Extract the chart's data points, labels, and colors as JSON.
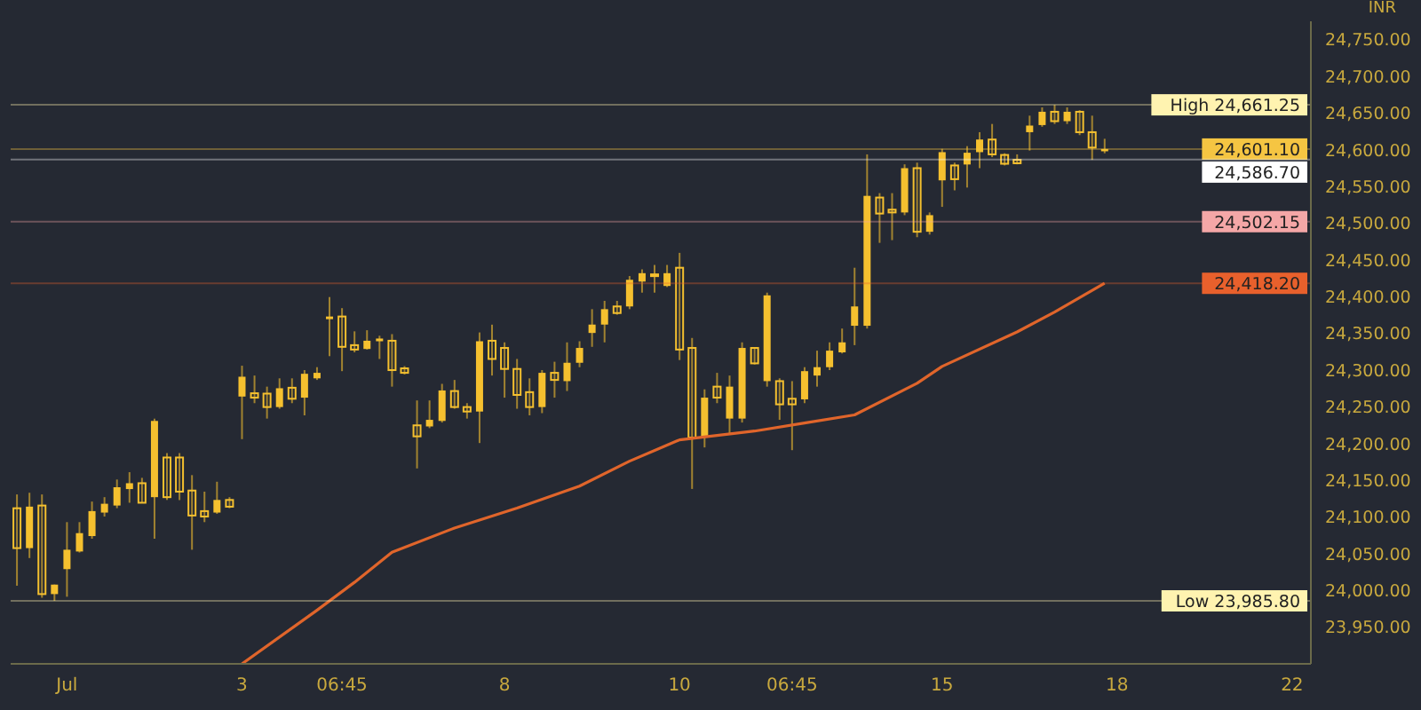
{
  "chart_data": {
    "type": "candlestick",
    "ylabel": "INR",
    "categories": [
      null,
      null,
      null,
      null,
      "Jul",
      null,
      null,
      null,
      null,
      null,
      null,
      null,
      null,
      null,
      null,
      null,
      null,
      null,
      "3",
      null,
      null,
      null,
      null,
      null,
      null,
      null,
      "06:45",
      null,
      null,
      null,
      null,
      null,
      null,
      null,
      null,
      null,
      null,
      null,
      null,
      "8",
      null,
      null,
      null,
      null,
      null,
      null,
      null,
      null,
      null,
      null,
      null,
      null,
      null,
      "10",
      null,
      null,
      null,
      null,
      null,
      null,
      null,
      null,
      "06:45",
      null,
      null,
      null,
      null,
      null,
      null,
      null,
      null,
      null,
      null,
      null,
      "15",
      null,
      null,
      null,
      null,
      null,
      null,
      null,
      null,
      null,
      null,
      null,
      null,
      null,
      "18",
      null,
      null,
      null,
      null,
      null,
      null,
      null,
      null,
      null,
      null,
      null,
      null,
      null,
      "22",
      null
    ],
    "series": [
      {
        "color": "#f5c02f",
        "ohlc": [
          [
            24111.9,
            24130.7,
            24006.4,
            24057.6
          ],
          [
            24057.6,
            24133,
            24044.1,
            24114.1
          ],
          [
            24115.6,
            24130.7,
            23990,
            23995
          ],
          [
            23995,
            24008,
            23985.8,
            24007.9
          ],
          [
            24029,
            24093,
            23991.4,
            24055.4
          ],
          [
            24053,
            24093,
            24051.6,
            24078
          ],
          [
            24074,
            24121,
            24070.4,
            24108
          ],
          [
            24106,
            24127,
            24100.6,
            24118
          ],
          [
            24115.6,
            24151,
            24112,
            24140.5
          ],
          [
            24138,
            24161,
            24119.4,
            24146
          ],
          [
            24146,
            24153.3,
            24119.4,
            24119.4
          ],
          [
            24127,
            24233.9,
            24070.4,
            24230.8
          ],
          [
            24181,
            24187,
            24123.2,
            24127
          ],
          [
            24181,
            24187,
            24123,
            24134.5
          ],
          [
            24136,
            24157,
            24055.4,
            24102
          ],
          [
            24108,
            24134.5,
            24093,
            24100.6
          ],
          [
            24106,
            24148,
            24104.3,
            24123.2
          ],
          [
            24123.2,
            24127,
            24112,
            24114
          ],
          [
            24264,
            24306,
            24206,
            24291
          ],
          [
            24268.5,
            24292.6,
            24255,
            24262.5
          ],
          [
            24268,
            24277.5,
            24234,
            24249.7
          ],
          [
            24249.7,
            24288.8,
            24247.4,
            24275.3
          ],
          [
            24276,
            24288.8,
            24255,
            24261
          ],
          [
            24262.5,
            24300,
            24238.4,
            24295
          ],
          [
            24288.8,
            24304,
            24286.6,
            24296.3
          ],
          [
            24369.4,
            24399.5,
            24319,
            24373
          ],
          [
            24373,
            24384.4,
            24298.6,
            24331.7
          ],
          [
            24334,
            24352.8,
            24324.2,
            24328
          ],
          [
            24328.8,
            24354.3,
            24328,
            24340
          ],
          [
            24339.3,
            24346.8,
            24315.2,
            24343
          ],
          [
            24340,
            24349,
            24277.5,
            24300
          ],
          [
            24302.4,
            24305.4,
            24294.1,
            24296.3
          ],
          [
            24224.8,
            24258.7,
            24166.1,
            24209.8
          ],
          [
            24223.3,
            24258.7,
            24221,
            24232.3
          ],
          [
            24230.8,
            24281.3,
            24228.6,
            24272.3
          ],
          [
            24271.5,
            24286.6,
            24247.4,
            24249.7
          ],
          [
            24249.7,
            24255,
            24234,
            24243.6
          ],
          [
            24243.6,
            24351.3,
            24200.7,
            24339.3
          ],
          [
            24340,
            24361.9,
            24292.6,
            24315.2
          ],
          [
            24330.2,
            24337.8,
            24262.5,
            24301.6
          ],
          [
            24301.6,
            24315.2,
            24247.4,
            24266.2
          ],
          [
            24270,
            24288.8,
            24238.4,
            24249.7
          ],
          [
            24249.7,
            24300,
            24241.4,
            24296.3
          ],
          [
            24296.3,
            24311.4,
            24262.5,
            24286.6
          ],
          [
            24285,
            24337.8,
            24271.5,
            24310
          ],
          [
            24310,
            24339.3,
            24304,
            24330.2
          ],
          [
            24350.6,
            24383,
            24331.7,
            24362
          ],
          [
            24362,
            24394.3,
            24337.8,
            24383
          ],
          [
            24386.7,
            24394.3,
            24375.4,
            24377.7
          ],
          [
            24386.7,
            24428.1,
            24383,
            24423
          ],
          [
            24420.6,
            24437.2,
            24405.5,
            24432
          ],
          [
            24430.4,
            24443.2,
            24405.5,
            24428.9
          ],
          [
            24414.6,
            24443.2,
            24413.1,
            24432
          ],
          [
            24439.4,
            24459.7,
            24313.7,
            24328
          ],
          [
            24330.2,
            24343.8,
            24138.2,
            24208.2
          ],
          [
            24208.2,
            24273.8,
            24194.7,
            24262.5
          ],
          [
            24277.5,
            24296.3,
            24255,
            24262.5
          ],
          [
            24234,
            24292.6,
            24213.5,
            24277.5
          ],
          [
            24234,
            24337.8,
            24228.6,
            24330.2
          ],
          [
            24330.2,
            24330.2,
            24307.6,
            24309.2
          ],
          [
            24285,
            24405.5,
            24277.5,
            24401.8
          ],
          [
            24285,
            24288.8,
            24232.3,
            24253.4
          ],
          [
            24261,
            24285,
            24191,
            24253.4
          ],
          [
            24260.2,
            24304,
            24255,
            24298.6
          ],
          [
            24292.6,
            24326.5,
            24277.5,
            24304
          ],
          [
            24304,
            24337.8,
            24300,
            24326.5
          ],
          [
            24324.2,
            24356.6,
            24322.7,
            24337.8
          ],
          [
            24360.4,
            24439.4,
            24334,
            24386.7
          ],
          [
            24360.4,
            24593.8,
            24356.6,
            24537.3
          ],
          [
            24535,
            24541,
            24473.3,
            24513.2
          ],
          [
            24518.5,
            24541,
            24477,
            24514.7
          ],
          [
            24514.7,
            24580.2,
            24511,
            24575
          ],
          [
            24575,
            24582.5,
            24481,
            24488.4
          ],
          [
            24488.4,
            24514.7,
            24484.6,
            24511
          ],
          [
            24558.4,
            24601.3,
            24522.3,
            24596.8
          ],
          [
            24578.7,
            24582.5,
            24544.8,
            24560
          ],
          [
            24580,
            24605,
            24548.6,
            24596
          ],
          [
            24596.8,
            24624,
            24575,
            24614
          ],
          [
            24614,
            24635.2,
            24590,
            24593.8
          ],
          [
            24593,
            24595.3,
            24578.7,
            24581
          ],
          [
            24586.3,
            24593.8,
            24580.2,
            24581.7
          ],
          [
            24624,
            24646.5,
            24599,
            24633
          ],
          [
            24633.7,
            24657.8,
            24631.4,
            24651.8
          ],
          [
            24651.8,
            24661.25,
            24635.2,
            24639
          ],
          [
            24639,
            24657.8,
            24635.2,
            24651.8
          ],
          [
            24651.8,
            24654,
            24620,
            24624
          ],
          [
            24624,
            24646.5,
            24586.3,
            24603
          ],
          [
            24598,
            24615,
            24595.3,
            24601.1
          ],
          null,
          null,
          null,
          null,
          null,
          null,
          null,
          null,
          null,
          null,
          null,
          null,
          null,
          null,
          null,
          null
        ]
      },
      {
        "type": "line",
        "color": "#e0652b",
        "values": [
          null,
          null,
          null,
          null,
          null,
          null,
          null,
          null,
          null,
          null,
          null,
          null,
          null,
          null,
          null,
          null,
          null,
          null,
          23900,
          null,
          null,
          null,
          null,
          null,
          23973,
          null,
          null,
          24011,
          null,
          null,
          24052,
          null,
          null,
          null,
          null,
          24085,
          null,
          null,
          null,
          null,
          24112,
          null,
          null,
          null,
          null,
          24142,
          null,
          null,
          null,
          24176,
          null,
          null,
          null,
          24205,
          null,
          null,
          null,
          null,
          null,
          24217,
          null,
          null,
          null,
          24228,
          null,
          null,
          null,
          24239,
          null,
          null,
          null,
          null,
          24282,
          null,
          24305,
          null,
          null,
          null,
          null,
          null,
          24352,
          null,
          null,
          24379,
          null,
          null,
          null,
          24418.2,
          null,
          null,
          null,
          null,
          null,
          null,
          null,
          null,
          null,
          null,
          null,
          null,
          null,
          null,
          null,
          null
        ]
      }
    ],
    "ylim": [
      23900,
      24775
    ],
    "yticks": [
      {
        "value": 23950,
        "label": "23,950.00"
      },
      {
        "value": 24000,
        "label": "24,000.00"
      },
      {
        "value": 24050,
        "label": "24,050.00"
      },
      {
        "value": 24100,
        "label": "24,100.00"
      },
      {
        "value": 24150,
        "label": "24,150.00"
      },
      {
        "value": 24200,
        "label": "24,200.00"
      },
      {
        "value": 24250,
        "label": "24,250.00"
      },
      {
        "value": 24300,
        "label": "24,300.00"
      },
      {
        "value": 24350,
        "label": "24,350.00"
      },
      {
        "value": 24400,
        "label": "24,400.00"
      },
      {
        "value": 24450,
        "label": "24,450.00"
      },
      {
        "value": 24500,
        "label": "24,500.00"
      },
      {
        "value": 24550,
        "label": "24,550.00"
      },
      {
        "value": 24600,
        "label": "24,600.00"
      },
      {
        "value": 24650,
        "label": "24,650.00"
      },
      {
        "value": 24700,
        "label": "24,700.00"
      },
      {
        "value": 24750,
        "label": "24,750.00"
      }
    ],
    "ref_lines": [
      {
        "axis": "y",
        "value": 24661.25,
        "label": "High 24,661.25",
        "color": "#fff3b0"
      },
      {
        "axis": "y",
        "value": 24601.1,
        "label": "24,601.10",
        "color": "#f5c542"
      },
      {
        "axis": "y",
        "value": 24586.7,
        "label": "24,586.70",
        "color": "#ffffff"
      },
      {
        "axis": "y",
        "value": 24502.15,
        "label": "24,502.15",
        "color": "#f4a7a7"
      },
      {
        "axis": "y",
        "value": 24418.2,
        "label": "24,418.20",
        "color": "#e8602c"
      },
      {
        "axis": "y",
        "value": 23985.8,
        "label": "Low 23,985.80",
        "color": "#fff3b0"
      }
    ]
  }
}
